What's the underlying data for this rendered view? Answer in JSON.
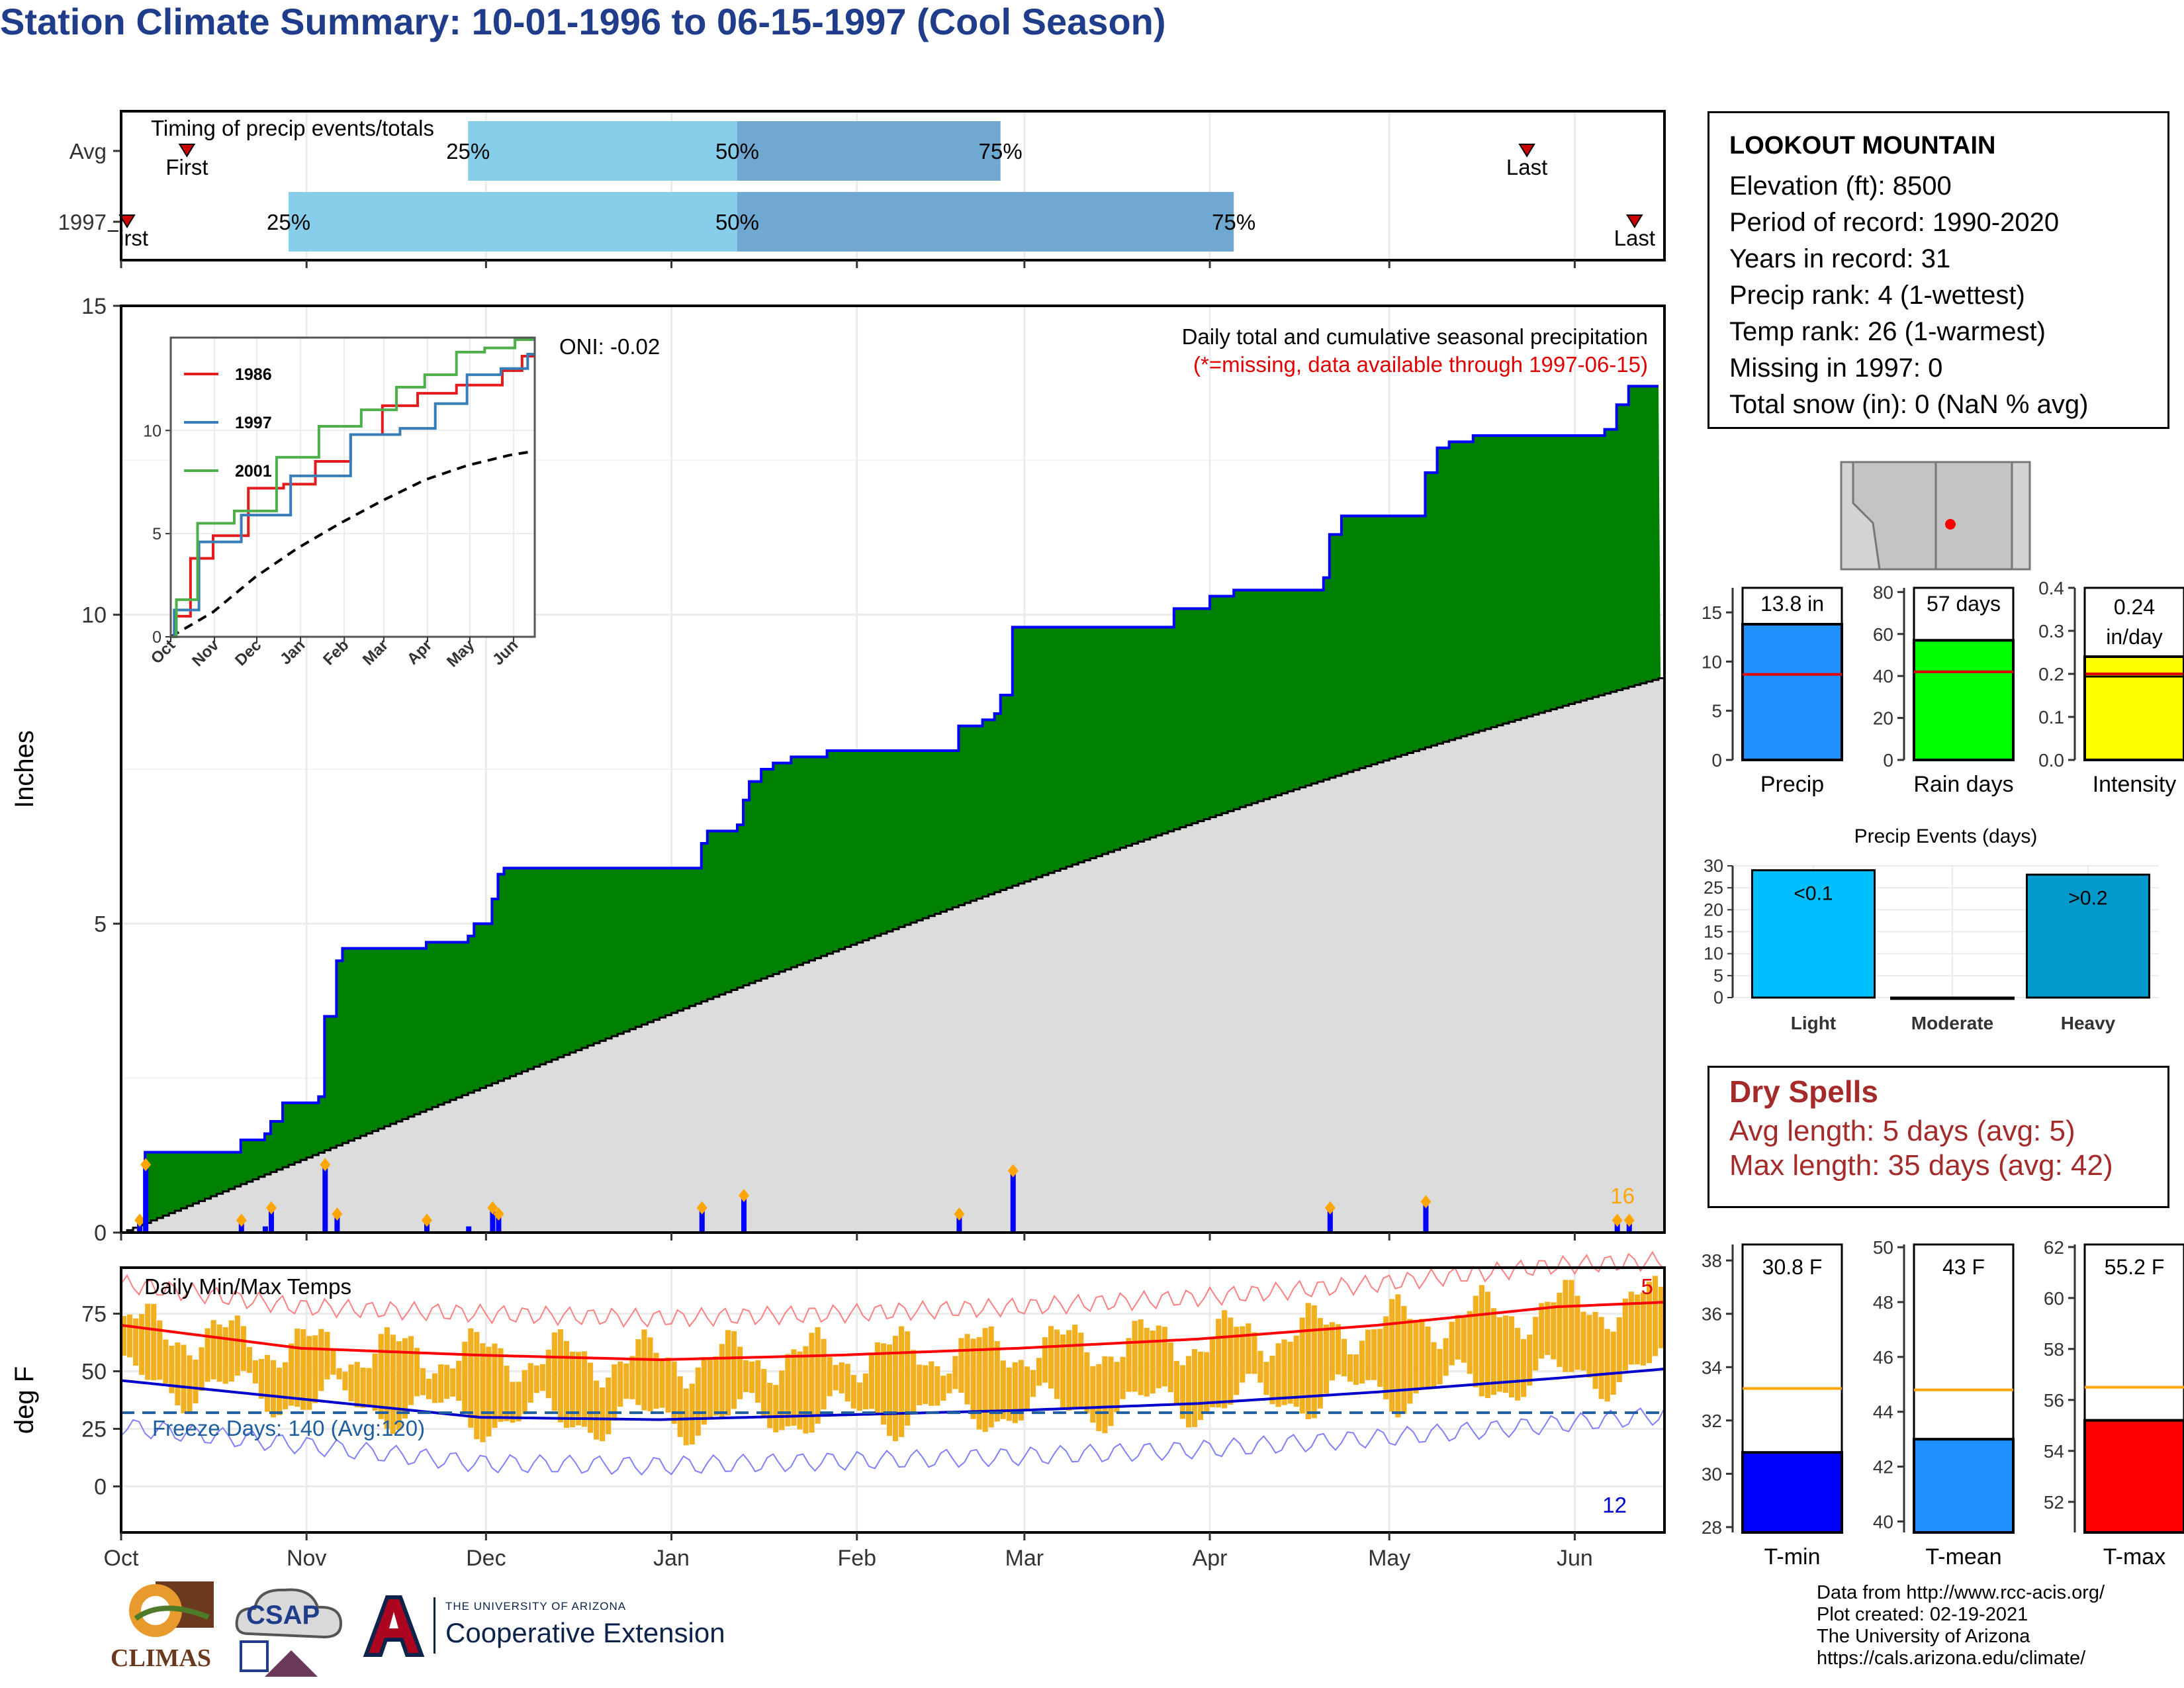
{
  "title": "Station Climate Summary: 10-01-1996 to 06-15-1997 (Cool Season)",
  "station": {
    "name": "LOOKOUT MOUNTAIN",
    "lines": [
      "Elevation (ft): 8500",
      "Period of record: 1990-2020",
      "Years in record: 31",
      "Precip rank: 4 (1-wettest)",
      "Temp rank: 26 (1-warmest)",
      "Missing in 1997: 0",
      "Total snow (in): 0 (NaN % avg)"
    ]
  },
  "dry_spells": {
    "title": "Dry Spells",
    "avg": "Avg length: 5 days (avg: 5)",
    "max": "Max length: 35 days (avg: 42)"
  },
  "credits": {
    "l1": "Data from http://www.rcc-acis.org/",
    "l2": "Plot created: 02-19-2021",
    "l3": "The University of Arizona",
    "l4": "https://cals.arizona.edu/climate/"
  },
  "logos": {
    "climas": "CLIMAS",
    "csap": "CSAP",
    "ua_small": "THE UNIVERSITY OF ARIZONA",
    "ua_big": "Cooperative Extension"
  },
  "colors": {
    "title": "#1f3d8a",
    "precip_fill": "#008000",
    "normal_fill": "#dcdcdc",
    "cum_line": "#0000ff",
    "daily_bar": "#0000ff",
    "marker": "#ffa500",
    "tmax_line": "#ff0000",
    "tmin_line": "#0000cd",
    "temp_bar": "#f0b020",
    "freeze_line": "#1f5fa0",
    "q1_box": "#87ceeb",
    "q2_box": "#6fa8d0",
    "dry_text": "#a52a2a"
  },
  "chart_data": [
    {
      "id": "timing",
      "type": "bar",
      "title": "Timing of precip events/totals",
      "rows": [
        "Avg",
        "1997"
      ],
      "months": [
        "Oct",
        "Nov",
        "Dec",
        "Jan",
        "Feb",
        "Mar",
        "Apr",
        "May",
        "Jun"
      ],
      "avg": {
        "first": "1996-10-12",
        "q25": "1996-11-28",
        "q50": "1997-01-12",
        "q75": "1997-02-25",
        "last": "1997-05-24"
      },
      "obs": {
        "first": "1996-10-02",
        "q25": "1996-10-29",
        "q50": "1997-01-12",
        "q75": "1997-04-05",
        "last": "1997-06-11"
      },
      "labels": {
        "first": "First",
        "last": "Last",
        "q25": "25%",
        "q50": "50%",
        "q75": "75%"
      }
    },
    {
      "id": "precip",
      "type": "area",
      "title": "Daily total and cumulative seasonal precipitation",
      "subtitle": "(*=missing, data available through 1997-06-15)",
      "ylabel": "Inches",
      "ylim": [
        0,
        15
      ],
      "yticks": [
        0,
        5,
        10,
        15
      ],
      "oni": "ONI: -0.02",
      "marker_count": "16",
      "cumulative": [
        [
          "1996-10-01",
          0
        ],
        [
          "1996-10-04",
          0.2
        ],
        [
          "1996-10-05",
          1.3
        ],
        [
          "1996-10-20",
          1.3
        ],
        [
          "1996-10-21",
          1.5
        ],
        [
          "1996-10-25",
          1.6
        ],
        [
          "1996-10-26",
          1.8
        ],
        [
          "1996-10-28",
          2.1
        ],
        [
          "1996-11-03",
          2.2
        ],
        [
          "1996-11-04",
          3.5
        ],
        [
          "1996-11-06",
          4.4
        ],
        [
          "1996-11-07",
          4.6
        ],
        [
          "1996-11-20",
          4.6
        ],
        [
          "1996-11-21",
          4.7
        ],
        [
          "1996-11-28",
          4.8
        ],
        [
          "1996-11-29",
          5.0
        ],
        [
          "1996-12-02",
          5.4
        ],
        [
          "1996-12-03",
          5.8
        ],
        [
          "1996-12-04",
          5.9
        ],
        [
          "1997-01-04",
          5.9
        ],
        [
          "1997-01-06",
          6.3
        ],
        [
          "1997-01-07",
          6.5
        ],
        [
          "1997-01-12",
          6.6
        ],
        [
          "1997-01-13",
          7.0
        ],
        [
          "1997-01-14",
          7.3
        ],
        [
          "1997-01-16",
          7.5
        ],
        [
          "1997-01-18",
          7.6
        ],
        [
          "1997-01-21",
          7.7
        ],
        [
          "1997-01-27",
          7.8
        ],
        [
          "1997-02-17",
          7.8
        ],
        [
          "1997-02-18",
          8.2
        ],
        [
          "1997-02-22",
          8.3
        ],
        [
          "1997-02-24",
          8.4
        ],
        [
          "1997-02-25",
          8.7
        ],
        [
          "1997-02-27",
          9.8
        ],
        [
          "1997-03-26",
          10.1
        ],
        [
          "1997-04-01",
          10.3
        ],
        [
          "1997-04-05",
          10.4
        ],
        [
          "1997-04-20",
          10.6
        ],
        [
          "1997-04-21",
          11.3
        ],
        [
          "1997-04-23",
          11.6
        ],
        [
          "1997-05-04",
          11.6
        ],
        [
          "1997-05-07",
          12.3
        ],
        [
          "1997-05-09",
          12.7
        ],
        [
          "1997-05-11",
          12.8
        ],
        [
          "1997-05-15",
          12.9
        ],
        [
          "1997-06-06",
          13.0
        ],
        [
          "1997-06-08",
          13.4
        ],
        [
          "1997-06-10",
          13.7
        ],
        [
          "1997-06-15",
          13.7
        ]
      ],
      "normal_end": 9.0,
      "daily_events": [
        [
          "1996-10-04",
          0.2
        ],
        [
          "1996-10-05",
          1.1
        ],
        [
          "1996-10-21",
          0.2
        ],
        [
          "1996-10-25",
          0.1
        ],
        [
          "1996-10-26",
          0.4
        ],
        [
          "1996-11-04",
          1.1
        ],
        [
          "1996-11-06",
          0.3
        ],
        [
          "1996-11-21",
          0.2
        ],
        [
          "1996-11-28",
          0.1
        ],
        [
          "1996-12-02",
          0.4
        ],
        [
          "1996-12-03",
          0.3
        ],
        [
          "1997-01-06",
          0.4
        ],
        [
          "1997-01-13",
          0.6
        ],
        [
          "1997-02-18",
          0.3
        ],
        [
          "1997-02-27",
          1.0
        ],
        [
          "1997-04-21",
          0.4
        ],
        [
          "1997-05-07",
          0.5
        ],
        [
          "1997-06-08",
          0.2
        ],
        [
          "1997-06-10",
          0.2
        ]
      ]
    },
    {
      "id": "inset",
      "type": "line",
      "ylim": [
        0,
        14.5
      ],
      "yticks": [
        0,
        5,
        10
      ],
      "months": [
        "Oct",
        "Nov",
        "Dec",
        "Jan",
        "Feb",
        "Mar",
        "Apr",
        "May",
        "Jun"
      ],
      "series": [
        {
          "name": "1986",
          "color": "#e41a1c",
          "values": [
            [
              0,
              0
            ],
            [
              8,
              1.0
            ],
            [
              20,
              3.8
            ],
            [
              40,
              4.9
            ],
            [
              70,
              7.2
            ],
            [
              90,
              7.4
            ],
            [
              115,
              8.5
            ],
            [
              140,
              9.8
            ],
            [
              160,
              11.2
            ],
            [
              190,
              11.8
            ],
            [
              215,
              12.2
            ],
            [
              230,
              12.2
            ],
            [
              240,
              12.9
            ],
            [
              258,
              13.6
            ]
          ]
        },
        {
          "name": "1997",
          "color": "#377eb8",
          "values": [
            [
              0,
              0
            ],
            [
              5,
              1.3
            ],
            [
              35,
              4.6
            ],
            [
              65,
              5.9
            ],
            [
              105,
              7.8
            ],
            [
              150,
              9.8
            ],
            [
              175,
              10.1
            ],
            [
              200,
              11.3
            ],
            [
              220,
              12.7
            ],
            [
              248,
              13.0
            ],
            [
              258,
              13.7
            ]
          ]
        },
        {
          "name": "2001",
          "color": "#4daf4a",
          "values": [
            [
              0,
              0
            ],
            [
              8,
              1.8
            ],
            [
              30,
              5.5
            ],
            [
              60,
              6.1
            ],
            [
              90,
              8.7
            ],
            [
              120,
              10.2
            ],
            [
              150,
              11.0
            ],
            [
              170,
              12.1
            ],
            [
              190,
              12.7
            ],
            [
              215,
              13.8
            ],
            [
              230,
              14.0
            ],
            [
              258,
              14.4
            ]
          ]
        }
      ],
      "normal": [
        [
          0,
          0
        ],
        [
          30,
          1.2
        ],
        [
          60,
          2.9
        ],
        [
          90,
          4.3
        ],
        [
          120,
          5.5
        ],
        [
          150,
          6.6
        ],
        [
          180,
          7.6
        ],
        [
          210,
          8.3
        ],
        [
          240,
          8.8
        ],
        [
          258,
          9.0
        ]
      ]
    },
    {
      "id": "temps",
      "type": "bar",
      "title": "Daily Min/Max Temps",
      "ylabel": "deg F",
      "ylim": [
        -20,
        95
      ],
      "yticks": [
        0,
        25,
        50,
        75
      ],
      "freeze_label": "Freeze Days: 140 (Avg:120)",
      "record_high_count": "5",
      "record_low_count": "12",
      "normal_tmax": [
        [
          0,
          70
        ],
        [
          30,
          60
        ],
        [
          60,
          57
        ],
        [
          90,
          55
        ],
        [
          120,
          57
        ],
        [
          150,
          60
        ],
        [
          180,
          64
        ],
        [
          210,
          70
        ],
        [
          240,
          78
        ],
        [
          258,
          80
        ]
      ],
      "normal_tmin": [
        [
          0,
          46
        ],
        [
          30,
          38
        ],
        [
          60,
          30
        ],
        [
          90,
          29
        ],
        [
          120,
          31
        ],
        [
          150,
          33
        ],
        [
          180,
          36
        ],
        [
          210,
          41
        ],
        [
          240,
          47
        ],
        [
          258,
          51
        ]
      ],
      "freeze_threshold": 32
    },
    {
      "id": "summary_bars",
      "type": "bar",
      "panels": [
        {
          "label": "Precip",
          "value": 13.8,
          "text": "13.8 in",
          "avg": 8.7,
          "ylim": [
            0,
            17.5
          ],
          "yticks": [
            0,
            5,
            10,
            15
          ],
          "color": "#1e90ff"
        },
        {
          "label": "Rain days",
          "value": 57,
          "text": "57 days",
          "avg": 42,
          "ylim": [
            0,
            82
          ],
          "yticks": [
            0,
            20,
            40,
            60,
            80
          ],
          "color": "#00ff00"
        },
        {
          "label": "Intensity",
          "value": 0.24,
          "text": "0.24 in/day",
          "avg": 0.2,
          "ylim": [
            0,
            0.4
          ],
          "yticks": [
            0.0,
            0.1,
            0.2,
            0.3,
            0.4
          ],
          "color": "#ffff00"
        }
      ]
    },
    {
      "id": "precip_events",
      "type": "bar",
      "title": "Precip Events (days)",
      "categories": [
        "Light",
        "Moderate",
        "Heavy"
      ],
      "values": [
        29,
        0,
        28
      ],
      "labels": [
        "<0.1",
        "",
        ">0.2"
      ],
      "ylim": [
        0,
        30
      ],
      "yticks": [
        0,
        5,
        10,
        15,
        20,
        25,
        30
      ],
      "colors": [
        "#00bfff",
        "#000000",
        "#0099cc"
      ]
    },
    {
      "id": "temp_bars",
      "type": "bar",
      "panels": [
        {
          "label": "T-min",
          "value": 30.8,
          "text": "30.8 F",
          "avg": 33.2,
          "ylim": [
            27.8,
            38.6
          ],
          "yticks": [
            28,
            30,
            32,
            34,
            36,
            38
          ],
          "color": "#0000ff"
        },
        {
          "label": "T-mean",
          "value": 43,
          "text": "43 F",
          "avg": 44.8,
          "ylim": [
            39.6,
            50.1
          ],
          "yticks": [
            40,
            42,
            44,
            46,
            48,
            50
          ],
          "color": "#1e90ff"
        },
        {
          "label": "T-max",
          "value": 55.2,
          "text": "55.2 F",
          "avg": 56.5,
          "ylim": [
            50.8,
            62.1
          ],
          "yticks": [
            52,
            54,
            56,
            58,
            60,
            62
          ],
          "color": "#ff0000"
        }
      ]
    }
  ]
}
